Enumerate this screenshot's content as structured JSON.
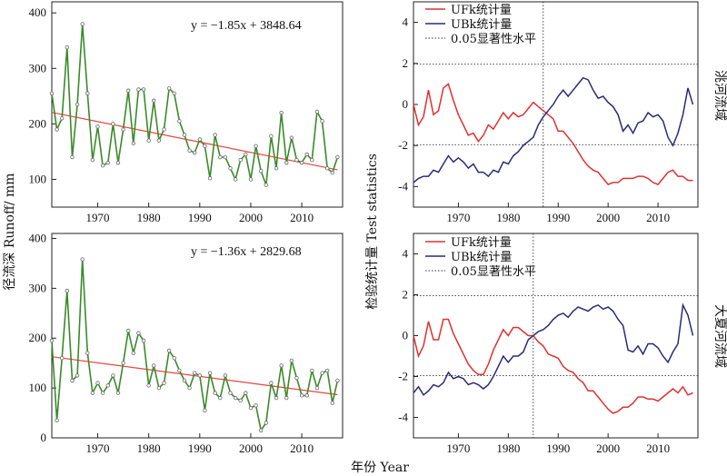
{
  "figure": {
    "x_axis_label": "年份  Year",
    "left_y_label": "径流深 Runoff/ mm",
    "right_y_label": "检验统计量 Test statistics"
  },
  "chart_data": [
    {
      "type": "line",
      "panel": "runoff-top",
      "regression_text": "y = −1.85x + 3848.64",
      "trend_line": {
        "slope": -1.85,
        "intercept": 3848.64
      },
      "xlim": [
        1961,
        2018
      ],
      "ylim": [
        50,
        420
      ],
      "x_ticks": [
        1970,
        1980,
        1990,
        2000,
        2010
      ],
      "y_ticks": [
        100,
        200,
        300,
        400
      ],
      "series": [
        {
          "color": "#3a8a2a",
          "x": [
            1961,
            1962,
            1963,
            1964,
            1965,
            1966,
            1967,
            1968,
            1969,
            1970,
            1971,
            1972,
            1973,
            1974,
            1975,
            1976,
            1977,
            1978,
            1979,
            1980,
            1981,
            1982,
            1983,
            1984,
            1985,
            1986,
            1987,
            1988,
            1989,
            1990,
            1991,
            1992,
            1993,
            1994,
            1995,
            1996,
            1997,
            1998,
            1999,
            2000,
            2001,
            2002,
            2003,
            2004,
            2005,
            2006,
            2007,
            2008,
            2009,
            2010,
            2011,
            2012,
            2013,
            2014,
            2015,
            2016,
            2017
          ],
          "y": [
            255,
            190,
            210,
            338,
            140,
            235,
            380,
            255,
            135,
            195,
            125,
            130,
            200,
            130,
            190,
            260,
            165,
            262,
            262,
            170,
            242,
            170,
            190,
            264,
            255,
            205,
            180,
            152,
            148,
            172,
            160,
            102,
            180,
            140,
            140,
            120,
            100,
            135,
            145,
            100,
            160,
            115,
            90,
            178,
            120,
            220,
            130,
            175,
            135,
            130,
            145,
            135,
            222,
            205,
            120,
            112,
            140
          ]
        }
      ]
    },
    {
      "type": "line",
      "panel": "runoff-bottom",
      "regression_text": "y = −1.36x + 2829.68",
      "trend_line": {
        "slope": -1.36,
        "intercept": 2829.68
      },
      "xlim": [
        1961,
        2018
      ],
      "ylim": [
        0,
        410
      ],
      "x_ticks": [
        1970,
        1980,
        1990,
        2000,
        2010
      ],
      "y_ticks": [
        0,
        100,
        200,
        300,
        400
      ],
      "series": [
        {
          "color": "#3a8a2a",
          "x": [
            1961,
            1962,
            1963,
            1964,
            1965,
            1966,
            1967,
            1968,
            1969,
            1970,
            1971,
            1972,
            1973,
            1974,
            1975,
            1976,
            1977,
            1978,
            1979,
            1980,
            1981,
            1982,
            1983,
            1984,
            1985,
            1986,
            1987,
            1988,
            1989,
            1990,
            1991,
            1992,
            1993,
            1994,
            1995,
            1996,
            1997,
            1998,
            1999,
            2000,
            2001,
            2002,
            2003,
            2004,
            2005,
            2006,
            2007,
            2008,
            2009,
            2010,
            2011,
            2012,
            2013,
            2014,
            2015,
            2016,
            2017
          ],
          "y": [
            195,
            35,
            160,
            295,
            115,
            125,
            358,
            170,
            90,
            110,
            90,
            105,
            125,
            90,
            150,
            215,
            170,
            210,
            195,
            105,
            145,
            100,
            110,
            175,
            160,
            135,
            115,
            100,
            130,
            125,
            55,
            130,
            90,
            80,
            125,
            90,
            80,
            75,
            90,
            60,
            65,
            15,
            30,
            110,
            80,
            145,
            80,
            155,
            120,
            85,
            85,
            135,
            100,
            130,
            135,
            70,
            115
          ]
        }
      ]
    },
    {
      "type": "line",
      "panel": "mk-top",
      "basin_label": "洮河流域",
      "change_year": 1987,
      "significance_level": 1.96,
      "xlim": [
        1961,
        2018
      ],
      "ylim": [
        -5,
        5
      ],
      "x_ticks": [
        1970,
        1980,
        1990,
        2000,
        2010
      ],
      "y_ticks": [
        -4,
        -2,
        0,
        2,
        4
      ],
      "legend": [
        {
          "label": "UFk统计量",
          "color": "#e03030",
          "style": "solid"
        },
        {
          "label": "UBk统计量",
          "color": "#2a2a7a",
          "style": "solid"
        },
        {
          "label": "0.05显著性水平",
          "color": "#333333",
          "style": "dotted"
        }
      ],
      "series": [
        {
          "name": "UFk统计量",
          "color": "#e03030",
          "x": [
            1961,
            1962,
            1963,
            1964,
            1965,
            1966,
            1967,
            1968,
            1969,
            1970,
            1971,
            1972,
            1973,
            1974,
            1975,
            1976,
            1977,
            1978,
            1979,
            1980,
            1981,
            1982,
            1983,
            1984,
            1985,
            1986,
            1987,
            1988,
            1989,
            1990,
            1991,
            1992,
            1993,
            1994,
            1995,
            1996,
            1997,
            1998,
            1999,
            2000,
            2001,
            2002,
            2003,
            2004,
            2005,
            2006,
            2007,
            2008,
            2009,
            2010,
            2011,
            2012,
            2013,
            2014,
            2015,
            2016,
            2017
          ],
          "y": [
            0,
            -1.0,
            -0.6,
            0.7,
            -0.5,
            -0.3,
            0.8,
            1.0,
            0.2,
            -0.5,
            -1.0,
            -1.5,
            -1.4,
            -1.8,
            -1.5,
            -1.0,
            -1.2,
            -0.8,
            -0.4,
            -0.7,
            -0.4,
            -0.6,
            -0.5,
            -0.2,
            0.1,
            -0.1,
            -0.3,
            -0.5,
            -0.7,
            -1.3,
            -1.3,
            -1.6,
            -1.9,
            -2.3,
            -2.7,
            -3.0,
            -3.2,
            -3.3,
            -3.6,
            -3.9,
            -3.8,
            -3.8,
            -3.6,
            -3.6,
            -3.6,
            -3.5,
            -3.5,
            -3.6,
            -3.8,
            -3.9,
            -3.6,
            -3.3,
            -3.2,
            -3.5,
            -3.5,
            -3.7,
            -3.7
          ]
        },
        {
          "name": "UBk统计量",
          "color": "#2a2a7a",
          "x": [
            1961,
            1962,
            1963,
            1964,
            1965,
            1966,
            1967,
            1968,
            1969,
            1970,
            1971,
            1972,
            1973,
            1974,
            1975,
            1976,
            1977,
            1978,
            1979,
            1980,
            1981,
            1982,
            1983,
            1984,
            1985,
            1986,
            1987,
            1988,
            1989,
            1990,
            1991,
            1992,
            1993,
            1994,
            1995,
            1996,
            1997,
            1998,
            1999,
            2000,
            2001,
            2002,
            2003,
            2004,
            2005,
            2006,
            2007,
            2008,
            2009,
            2010,
            2011,
            2012,
            2013,
            2014,
            2015,
            2016,
            2017
          ],
          "y": [
            -3.8,
            -3.6,
            -3.5,
            -3.5,
            -3.2,
            -3.3,
            -2.9,
            -2.5,
            -2.8,
            -2.6,
            -2.8,
            -3.1,
            -2.9,
            -3.3,
            -3.3,
            -3.5,
            -3.2,
            -3.3,
            -2.8,
            -2.9,
            -2.5,
            -2.3,
            -2.0,
            -1.8,
            -1.6,
            -1.0,
            -0.6,
            -0.3,
            0.0,
            0.4,
            0.7,
            0.4,
            0.7,
            1.0,
            1.3,
            1.2,
            0.7,
            0.3,
            0.4,
            0.1,
            -0.1,
            -0.5,
            -1.3,
            -1.0,
            -1.4,
            -0.9,
            -0.8,
            -0.4,
            -0.6,
            -0.5,
            -0.8,
            -1.6,
            -2.0,
            -1.4,
            -0.5,
            0.8,
            0.0
          ]
        }
      ]
    },
    {
      "type": "line",
      "panel": "mk-bottom",
      "basin_label": "大夏河流域",
      "change_year": 1985,
      "significance_level": 1.96,
      "xlim": [
        1961,
        2018
      ],
      "ylim": [
        -5,
        5
      ],
      "x_ticks": [
        1970,
        1980,
        1990,
        2000,
        2010
      ],
      "y_ticks": [
        -4,
        -2,
        0,
        2,
        4
      ],
      "legend": [
        {
          "label": "UFk统计量",
          "color": "#e03030",
          "style": "solid"
        },
        {
          "label": "UBk统计量",
          "color": "#2a2a7a",
          "style": "solid"
        },
        {
          "label": "0.05显著性水平",
          "color": "#333333",
          "style": "dotted"
        }
      ],
      "series": [
        {
          "name": "UFk统计量",
          "color": "#e03030",
          "x": [
            1961,
            1962,
            1963,
            1964,
            1965,
            1966,
            1967,
            1968,
            1969,
            1970,
            1971,
            1972,
            1973,
            1974,
            1975,
            1976,
            1977,
            1978,
            1979,
            1980,
            1981,
            1982,
            1983,
            1984,
            1985,
            1986,
            1987,
            1988,
            1989,
            1990,
            1991,
            1992,
            1993,
            1994,
            1995,
            1996,
            1997,
            1998,
            1999,
            2000,
            2001,
            2002,
            2003,
            2004,
            2005,
            2006,
            2007,
            2008,
            2009,
            2010,
            2011,
            2012,
            2013,
            2014,
            2015,
            2016,
            2017
          ],
          "y": [
            0,
            -1.0,
            -0.5,
            0.7,
            -0.2,
            -0.2,
            0.8,
            0.8,
            0.1,
            -0.4,
            -0.9,
            -1.4,
            -1.7,
            -1.9,
            -1.9,
            -1.4,
            -0.7,
            -0.2,
            0.3,
            0.0,
            0.4,
            0.4,
            0.2,
            0.0,
            0.0,
            -0.3,
            -0.5,
            -0.9,
            -1.0,
            -1.1,
            -1.5,
            -1.7,
            -1.8,
            -2.1,
            -2.3,
            -2.7,
            -2.7,
            -3.0,
            -3.3,
            -3.6,
            -3.8,
            -3.7,
            -3.5,
            -3.5,
            -3.3,
            -3.0,
            -3.0,
            -3.1,
            -3.1,
            -3.2,
            -3.0,
            -2.8,
            -2.6,
            -2.8,
            -2.5,
            -2.9,
            -2.8
          ]
        },
        {
          "name": "UBk统计量",
          "color": "#2a2a7a",
          "x": [
            1961,
            1962,
            1963,
            1964,
            1965,
            1966,
            1967,
            1968,
            1969,
            1970,
            1971,
            1972,
            1973,
            1974,
            1975,
            1976,
            1977,
            1978,
            1979,
            1980,
            1981,
            1982,
            1983,
            1984,
            1985,
            1986,
            1987,
            1988,
            1989,
            1990,
            1991,
            1992,
            1993,
            1994,
            1995,
            1996,
            1997,
            1998,
            1999,
            2000,
            2001,
            2002,
            2003,
            2004,
            2005,
            2006,
            2007,
            2008,
            2009,
            2010,
            2011,
            2012,
            2013,
            2014,
            2015,
            2016,
            2017
          ],
          "y": [
            -2.8,
            -2.5,
            -2.9,
            -2.7,
            -2.4,
            -2.5,
            -2.3,
            -1.8,
            -2.1,
            -2.0,
            -2.1,
            -2.4,
            -2.3,
            -2.4,
            -2.6,
            -2.4,
            -2.0,
            -1.5,
            -1.0,
            -1.3,
            -1.0,
            -1.0,
            -0.8,
            -0.2,
            0.0,
            0.2,
            0.3,
            0.5,
            0.8,
            1.0,
            1.1,
            0.9,
            1.2,
            1.4,
            1.3,
            1.2,
            1.4,
            1.5,
            1.3,
            1.4,
            1.2,
            0.8,
            0.5,
            -0.7,
            -0.8,
            -0.5,
            -0.9,
            -0.4,
            -0.4,
            -0.6,
            -1.0,
            -1.3,
            -0.8,
            -0.4,
            1.5,
            1.0,
            0.0
          ]
        }
      ]
    }
  ]
}
